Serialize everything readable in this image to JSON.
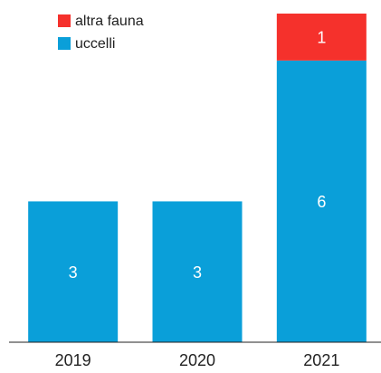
{
  "chart_data": {
    "type": "stacked_bar",
    "categories": [
      "2019",
      "2020",
      "2021"
    ],
    "series": [
      {
        "name": "uccelli",
        "color": "#0a9fd9",
        "values": [
          3,
          3,
          6
        ]
      },
      {
        "name": "altra fauna",
        "color": "#f5312c",
        "values": [
          null,
          null,
          1
        ]
      }
    ],
    "ylim": [
      0,
      7
    ],
    "legend": "top-left"
  }
}
